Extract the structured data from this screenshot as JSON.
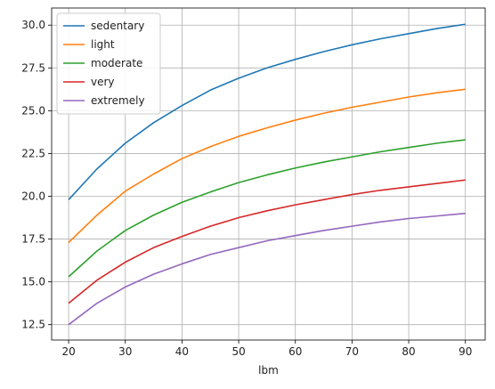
{
  "chart_data": {
    "type": "line",
    "title": "",
    "xlabel": "lbm",
    "ylabel": "",
    "xlim": [
      17,
      93.5
    ],
    "ylim": [
      11.6,
      31.0
    ],
    "xticks": [
      20,
      30,
      40,
      50,
      60,
      70,
      80,
      90
    ],
    "yticks": [
      12.5,
      15.0,
      17.5,
      20.0,
      22.5,
      25.0,
      27.5,
      30.0
    ],
    "xtick_labels": [
      "20",
      "30",
      "40",
      "50",
      "60",
      "70",
      "80",
      "90"
    ],
    "ytick_labels": [
      "12.5",
      "15.0",
      "17.5",
      "20.0",
      "22.5",
      "25.0",
      "27.5",
      "30.0"
    ],
    "grid": true,
    "legend_position": "upper-left",
    "x": [
      20,
      25,
      30,
      35,
      40,
      45,
      50,
      55,
      60,
      65,
      70,
      75,
      80,
      85,
      90
    ],
    "series": [
      {
        "name": "sedentary",
        "color": "#1f77b4",
        "values": [
          19.8,
          21.6,
          23.1,
          24.3,
          25.3,
          26.2,
          26.9,
          27.5,
          28.0,
          28.45,
          28.85,
          29.2,
          29.5,
          29.8,
          30.05
        ]
      },
      {
        "name": "light",
        "color": "#ff7f0e",
        "values": [
          17.3,
          18.9,
          20.3,
          21.3,
          22.2,
          22.9,
          23.5,
          24.0,
          24.45,
          24.85,
          25.2,
          25.5,
          25.8,
          26.05,
          26.25
        ]
      },
      {
        "name": "moderate",
        "color": "#2ca02c",
        "values": [
          15.3,
          16.8,
          18.0,
          18.9,
          19.65,
          20.25,
          20.8,
          21.25,
          21.65,
          22.0,
          22.3,
          22.6,
          22.85,
          23.1,
          23.3
        ]
      },
      {
        "name": "very",
        "color": "#d62728",
        "values": [
          13.75,
          15.1,
          16.15,
          17.0,
          17.65,
          18.25,
          18.75,
          19.15,
          19.5,
          19.8,
          20.1,
          20.35,
          20.55,
          20.75,
          20.95
        ]
      },
      {
        "name": "extremely",
        "color": "#9467bd",
        "values": [
          12.5,
          13.75,
          14.7,
          15.45,
          16.05,
          16.6,
          17.0,
          17.4,
          17.7,
          18.0,
          18.25,
          18.5,
          18.7,
          18.85,
          19.0
        ]
      }
    ]
  }
}
